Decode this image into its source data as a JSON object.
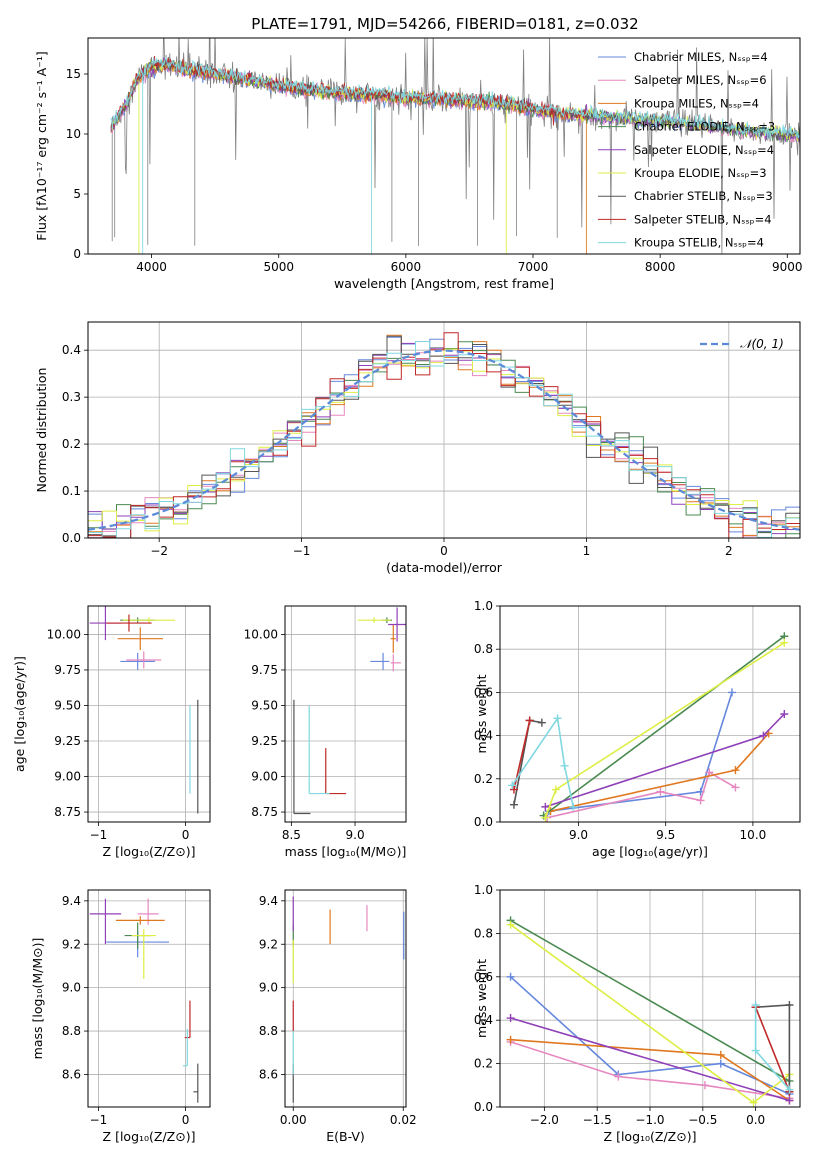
{
  "figure": {
    "title": "PLATE=1791, MJD=54266, FIBERID=0181, z=0.032"
  },
  "colors": {
    "grid": "#b0b0b0",
    "model_palette": [
      "#6688dd",
      "#e688c0",
      "#e07820",
      "#4a8a50",
      "#9040b8",
      "#ddee44",
      "#555555",
      "#c02828",
      "#80d8e0"
    ],
    "observed": "#808080",
    "normal_curve": "#5a8ad8"
  },
  "chart_data": [
    {
      "id": "spectrum",
      "type": "line",
      "title": "PLATE=1791, MJD=54266, FIBERID=0181, z=0.032",
      "xlabel": "wavelength [Angstrom, rest frame]",
      "ylabel": "Flux [fλ10⁻¹⁷ erg cm⁻² s⁻¹ A⁻¹]",
      "xlim": [
        3500,
        9100
      ],
      "ylim": [
        0,
        18
      ],
      "xticks": [
        4000,
        5000,
        6000,
        7000,
        8000,
        9000
      ],
      "yticks": [
        0,
        5,
        10,
        15
      ],
      "legend_position": "top-right",
      "legend": [
        "Chabrier MILES, Nₛₛₚ=4",
        "Salpeter MILES, Nₛₛₚ=6",
        "Kroupa MILES, Nₛₛₚ=4",
        "Chabrier ELODIE, Nₛₛₚ=3",
        "Salpeter ELODIE, Nₛₛₚ=4",
        "Kroupa ELODIE, Nₛₛₚ=3",
        "Chabrier STELIB, Nₛₛₚ=3",
        "Salpeter STELIB, Nₛₛₚ=4",
        "Kroupa STELIB, Nₛₛₚ=4"
      ],
      "observed_shape": {
        "x": [
          3680,
          3800,
          3900,
          4000,
          4100,
          4300,
          4500,
          4800,
          5000,
          5200,
          5500,
          5800,
          6000,
          6300,
          6600,
          6900,
          7200,
          7500,
          7800,
          8200,
          8600,
          9100
        ],
        "y": [
          10.5,
          12.5,
          14.8,
          15.6,
          15.8,
          15.3,
          15.0,
          14.4,
          14.0,
          13.7,
          13.4,
          13.2,
          13.0,
          12.9,
          12.7,
          12.3,
          11.7,
          11.5,
          11.2,
          10.9,
          10.3,
          9.8
        ]
      },
      "model_dropouts": [
        {
          "x": 3900,
          "series": 5
        },
        {
          "x": 3930,
          "series": 8
        },
        {
          "x": 5730,
          "series": 8
        },
        {
          "x": 6790,
          "series": 5
        },
        {
          "x": 7420,
          "series": 2
        }
      ]
    },
    {
      "id": "residuals",
      "type": "histogram",
      "xlabel": "(data-model)/error",
      "ylabel": "Normed distribution",
      "xlim": [
        -2.5,
        2.5
      ],
      "ylim": [
        0,
        0.46
      ],
      "xticks": [
        -2,
        -1,
        0,
        1,
        2
      ],
      "yticks": [
        0.0,
        0.1,
        0.2,
        0.3,
        0.4
      ],
      "legend_position": "top-right",
      "legend": [
        "𝒩(0, 1)"
      ],
      "bin_width": 0.1
    },
    {
      "id": "age_vs_Z",
      "type": "errorbar",
      "xlabel": "Z [log₁₀(Z/Z⊙)]",
      "ylabel": "age  [log₁₀(age/yr)]",
      "xlim": [
        -1.12,
        0.28
      ],
      "ylim": [
        8.68,
        10.2
      ],
      "xticks": [
        -1,
        0
      ],
      "yticks": [
        8.75,
        9.0,
        9.25,
        9.5,
        9.75,
        10.0
      ],
      "points": [
        {
          "x": -0.55,
          "y": 9.81,
          "xerr": [
            0.2,
            0.2
          ],
          "yerr": [
            0.06,
            0.06
          ],
          "c": 0
        },
        {
          "x": -0.48,
          "y": 9.82,
          "xerr": [
            0.2,
            0.2
          ],
          "yerr": [
            0.06,
            0.06
          ],
          "c": 1
        },
        {
          "x": -0.52,
          "y": 9.97,
          "xerr": [
            0.26,
            0.26
          ],
          "yerr": [
            0.08,
            0.08
          ],
          "c": 2
        },
        {
          "x": -0.55,
          "y": 10.1,
          "xerr": [
            0.2,
            0.2
          ],
          "yerr": [
            0.02,
            0.02
          ],
          "c": 3
        },
        {
          "x": -0.92,
          "y": 10.08,
          "xerr": [
            0.18,
            0.18
          ],
          "yerr": [
            0.12,
            0.12
          ],
          "c": 4
        },
        {
          "x": -0.42,
          "y": 10.1,
          "xerr": [
            0.3,
            0.3
          ],
          "yerr": [
            0.02,
            0.02
          ],
          "c": 5
        },
        {
          "x": 0.14,
          "y": 8.74,
          "xerr": [
            0.0,
            0.0
          ],
          "yerr": [
            0.0,
            0.8
          ],
          "c": 6
        },
        {
          "x": -0.65,
          "y": 10.08,
          "xerr": [
            0.26,
            0.26
          ],
          "yerr": [
            0.06,
            0.06
          ],
          "c": 7
        },
        {
          "x": 0.05,
          "y": 8.88,
          "xerr": [
            0.0,
            0.0
          ],
          "yerr": [
            0.0,
            0.62
          ],
          "c": 8
        }
      ]
    },
    {
      "id": "age_vs_mass",
      "type": "errorbar",
      "xlabel": "mass [log₁₀(M/M⊙)]",
      "ylabel": "",
      "xlim": [
        8.45,
        9.4
      ],
      "ylim": [
        8.68,
        10.2
      ],
      "xticks": [
        8.5,
        9.0
      ],
      "yticks": [
        8.75,
        9.0,
        9.25,
        9.5,
        9.75,
        10.0
      ],
      "points": [
        {
          "x": 9.22,
          "y": 9.81,
          "xerr": [
            0.1,
            0.05
          ],
          "yerr": [
            0.06,
            0.06
          ],
          "c": 0
        },
        {
          "x": 9.3,
          "y": 9.8,
          "xerr": [
            0.02,
            0.06
          ],
          "yerr": [
            0.06,
            0.06
          ],
          "c": 1
        },
        {
          "x": 9.3,
          "y": 9.97,
          "xerr": [
            0.02,
            0.02
          ],
          "yerr": [
            0.1,
            0.1
          ],
          "c": 2
        },
        {
          "x": 9.25,
          "y": 10.1,
          "xerr": [
            0.04,
            0.04
          ],
          "yerr": [
            0.02,
            0.02
          ],
          "c": 3
        },
        {
          "x": 9.33,
          "y": 10.07,
          "xerr": [
            0.07,
            0.07
          ],
          "yerr": [
            0.12,
            0.12
          ],
          "c": 4
        },
        {
          "x": 9.15,
          "y": 10.1,
          "xerr": [
            0.13,
            0.13
          ],
          "yerr": [
            0.02,
            0.02
          ],
          "c": 5
        },
        {
          "x": 8.52,
          "y": 8.74,
          "xerr": [
            0.0,
            0.13
          ],
          "yerr": [
            0.0,
            0.8
          ],
          "c": 6
        },
        {
          "x": 8.77,
          "y": 8.88,
          "xerr": [
            0.0,
            0.16
          ],
          "yerr": [
            0.0,
            0.32
          ],
          "c": 7
        },
        {
          "x": 8.64,
          "y": 8.88,
          "xerr": [
            0.0,
            0.16
          ],
          "yerr": [
            0.0,
            0.62
          ],
          "c": 8
        }
      ]
    },
    {
      "id": "weight_vs_age",
      "type": "line",
      "xlabel": "age  [log₁₀(age/yr)]",
      "ylabel": "mass weight",
      "xlim": [
        8.55,
        10.27
      ],
      "ylim": [
        0,
        1.0
      ],
      "xticks": [
        9.0,
        9.5,
        10.0
      ],
      "yticks": [
        0.0,
        0.2,
        0.4,
        0.6,
        0.8,
        1.0
      ],
      "series": [
        {
          "c": 0,
          "x": [
            8.83,
            9.7,
            9.88
          ],
          "y": [
            0.05,
            0.14,
            0.6
          ]
        },
        {
          "c": 1,
          "x": [
            8.82,
            9.47,
            9.7,
            9.75,
            9.9
          ],
          "y": [
            0.02,
            0.14,
            0.1,
            0.23,
            0.16
          ]
        },
        {
          "c": 2,
          "x": [
            8.84,
            9.9,
            10.09
          ],
          "y": [
            0.05,
            0.24,
            0.41
          ]
        },
        {
          "c": 3,
          "x": [
            8.8,
            10.18
          ],
          "y": [
            0.03,
            0.86
          ]
        },
        {
          "c": 4,
          "x": [
            8.81,
            10.06,
            10.18
          ],
          "y": [
            0.07,
            0.4,
            0.5
          ]
        },
        {
          "c": 5,
          "x": [
            8.81,
            8.87,
            10.18
          ],
          "y": [
            0.02,
            0.15,
            0.83
          ]
        },
        {
          "c": 6,
          "x": [
            8.63,
            8.72,
            8.79
          ],
          "y": [
            0.08,
            0.47,
            0.46
          ]
        },
        {
          "c": 7,
          "x": [
            8.63,
            8.72
          ],
          "y": [
            0.15,
            0.47
          ]
        },
        {
          "c": 8,
          "x": [
            8.62,
            8.88,
            8.92,
            8.97
          ],
          "y": [
            0.17,
            0.48,
            0.26,
            0.07
          ]
        }
      ]
    },
    {
      "id": "mass_vs_Z",
      "type": "errorbar",
      "xlabel": "Z [log₁₀(Z/Z⊙)]",
      "ylabel": "mass [log₁₀(M/M⊙)]",
      "xlim": [
        -1.12,
        0.28
      ],
      "ylim": [
        8.45,
        9.45
      ],
      "xticks": [
        -1,
        0
      ],
      "yticks": [
        8.6,
        8.8,
        9.0,
        9.2,
        9.4
      ],
      "points": [
        {
          "x": -0.55,
          "y": 9.21,
          "xerr": [
            0.36,
            0.36
          ],
          "yerr": [
            0.07,
            0.05
          ],
          "c": 0
        },
        {
          "x": -0.43,
          "y": 9.34,
          "xerr": [
            0.12,
            0.12
          ],
          "yerr": [
            0.05,
            0.07
          ],
          "c": 1
        },
        {
          "x": -0.52,
          "y": 9.31,
          "xerr": [
            0.28,
            0.28
          ],
          "yerr": [
            0.02,
            0.02
          ],
          "c": 2
        },
        {
          "x": -0.55,
          "y": 9.24,
          "xerr": [
            0.15,
            0.15
          ],
          "yerr": [
            0.06,
            0.06
          ],
          "c": 3
        },
        {
          "x": -0.92,
          "y": 9.34,
          "xerr": [
            0.18,
            0.18
          ],
          "yerr": [
            0.14,
            0.07
          ],
          "c": 4
        },
        {
          "x": -0.48,
          "y": 9.24,
          "xerr": [
            0.14,
            0.14
          ],
          "yerr": [
            0.2,
            0.03
          ],
          "c": 5
        },
        {
          "x": 0.14,
          "y": 8.52,
          "xerr": [
            0.05,
            0.0
          ],
          "yerr": [
            0.05,
            0.13
          ],
          "c": 6
        },
        {
          "x": 0.05,
          "y": 8.77,
          "xerr": [
            0.06,
            0.0
          ],
          "yerr": [
            0.0,
            0.17
          ],
          "c": 7
        },
        {
          "x": 0.02,
          "y": 8.64,
          "xerr": [
            0.05,
            0.0
          ],
          "yerr": [
            0.0,
            0.17
          ],
          "c": 8
        }
      ]
    },
    {
      "id": "mass_vs_ebv",
      "type": "errorbar",
      "xlabel": "E(B-V)",
      "ylabel": "",
      "xlim": [
        -0.0015,
        0.0205
      ],
      "ylim": [
        8.45,
        9.45
      ],
      "xticks": [
        0.0,
        0.02
      ],
      "xtick_labels": [
        "0.00",
        "0.02"
      ],
      "yticks": [
        8.6,
        8.8,
        9.0,
        9.2,
        9.4
      ],
      "points": [
        {
          "x": 0.0201,
          "y": 9.23,
          "xerr": [
            0,
            0
          ],
          "yerr": [
            0.1,
            0.12
          ],
          "c": 0
        },
        {
          "x": 0.0134,
          "y": 9.31,
          "xerr": [
            0,
            0
          ],
          "yerr": [
            0.05,
            0.07
          ],
          "c": 1
        },
        {
          "x": 0.0067,
          "y": 9.28,
          "xerr": [
            0,
            0
          ],
          "yerr": [
            0.08,
            0.08
          ],
          "c": 2
        },
        {
          "x": 0.0,
          "y": 9.24,
          "xerr": [
            0,
            0
          ],
          "yerr": [
            0.05,
            0.05
          ],
          "c": 3
        },
        {
          "x": 0.0,
          "y": 9.34,
          "xerr": [
            0,
            0
          ],
          "yerr": [
            0.08,
            0.08
          ],
          "c": 4
        },
        {
          "x": 0.0,
          "y": 9.12,
          "xerr": [
            0,
            0
          ],
          "yerr": [
            0.1,
            0.1
          ],
          "c": 5
        },
        {
          "x": 0.0,
          "y": 8.55,
          "xerr": [
            0,
            0
          ],
          "yerr": [
            0.08,
            0.1
          ],
          "c": 6
        },
        {
          "x": 0.0,
          "y": 8.87,
          "xerr": [
            0,
            0
          ],
          "yerr": [
            0.07,
            0.07
          ],
          "c": 7
        },
        {
          "x": 0.0,
          "y": 8.7,
          "xerr": [
            0,
            0
          ],
          "yerr": [
            0.1,
            0.1
          ],
          "c": 8
        }
      ]
    },
    {
      "id": "weight_vs_Z",
      "type": "line",
      "xlabel": "Z [log₁₀(Z/Z⊙)]",
      "ylabel": "mass weight",
      "xlim": [
        -2.42,
        0.42
      ],
      "ylim": [
        0,
        1.0
      ],
      "xticks": [
        -2.0,
        -1.5,
        -1.0,
        -0.5,
        0.0
      ],
      "yticks": [
        0.0,
        0.2,
        0.4,
        0.6,
        0.8,
        1.0
      ],
      "series": [
        {
          "c": 0,
          "x": [
            -2.32,
            -1.3,
            -0.33,
            0.32
          ],
          "y": [
            0.6,
            0.15,
            0.2,
            0.06
          ]
        },
        {
          "c": 1,
          "x": [
            -2.32,
            -1.3,
            -0.48,
            0.32
          ],
          "y": [
            0.3,
            0.14,
            0.1,
            0.04
          ]
        },
        {
          "c": 2,
          "x": [
            -2.32,
            -0.33,
            0.32
          ],
          "y": [
            0.31,
            0.24,
            0.03
          ]
        },
        {
          "c": 3,
          "x": [
            -2.32,
            0.32
          ],
          "y": [
            0.86,
            0.12
          ]
        },
        {
          "c": 4,
          "x": [
            -2.32,
            0.32
          ],
          "y": [
            0.41,
            0.03
          ]
        },
        {
          "c": 5,
          "x": [
            -2.32,
            -0.02,
            0.32
          ],
          "y": [
            0.84,
            0.02,
            0.15
          ]
        },
        {
          "c": 6,
          "x": [
            0.0,
            0.32,
            0.32
          ],
          "y": [
            0.46,
            0.47,
            0.07
          ]
        },
        {
          "c": 7,
          "x": [
            0.0,
            0.32
          ],
          "y": [
            0.46,
            0.07
          ]
        },
        {
          "c": 8,
          "x": [
            0.0,
            0.0,
            0.32
          ],
          "y": [
            0.47,
            0.26,
            0.08
          ]
        }
      ]
    }
  ]
}
